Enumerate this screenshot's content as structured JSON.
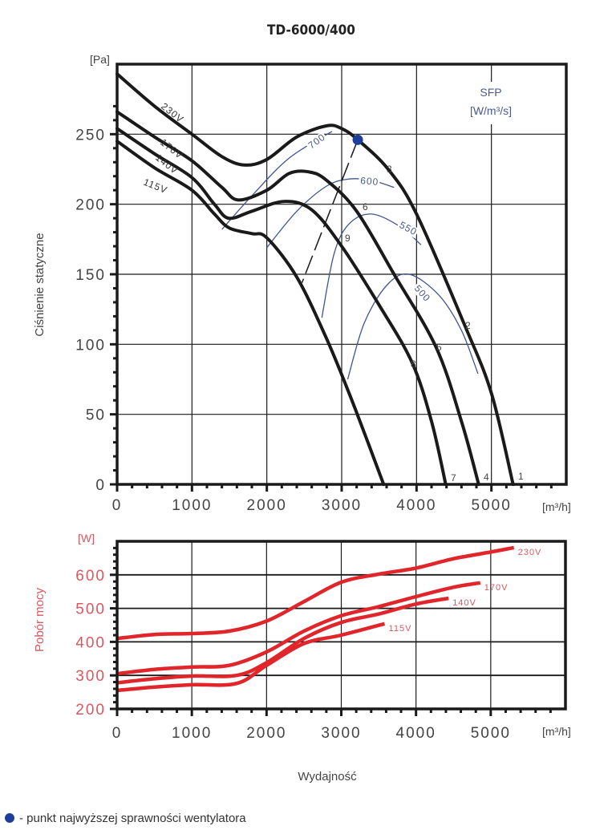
{
  "chart_data": [
    {
      "type": "line",
      "title": "TD-6000/400",
      "xlabel": "Wydajność",
      "xunit": "[m³/h]",
      "ylabel": "Ciśnienie statyczne",
      "yunit": "[Pa]",
      "xlim": [
        0,
        6000
      ],
      "ylim": [
        0,
        300
      ],
      "xticks": [
        0,
        1000,
        2000,
        3000,
        4000,
        5000
      ],
      "yticks": [
        0,
        50,
        100,
        150,
        200,
        250
      ],
      "grid": true,
      "series": [
        {
          "name": "230V",
          "x": [
            0,
            500,
            1000,
            1400,
            1700,
            2000,
            2400,
            2800,
            3000,
            3215,
            3620,
            4000,
            4640,
            5000,
            5290
          ],
          "y": [
            293,
            270,
            250,
            234,
            228,
            232,
            248,
            256,
            254,
            246,
            225,
            193,
            114,
            65,
            0
          ]
        },
        {
          "name": "170V",
          "x": [
            0,
            500,
            1000,
            1400,
            1620,
            2000,
            2300,
            2570,
            2800,
            3200,
            3700,
            4260,
            4600,
            4830
          ],
          "y": [
            266,
            248,
            231,
            212,
            203,
            210,
            222,
            223,
            217,
            195,
            150,
            98,
            45,
            0
          ]
        },
        {
          "name": "140V",
          "x": [
            0,
            500,
            1000,
            1300,
            1490,
            1800,
            2230,
            2600,
            3000,
            3500,
            3940,
            4200,
            4390
          ],
          "y": [
            254,
            236,
            219,
            200,
            190,
            195,
            202,
            196,
            170,
            128,
            87,
            45,
            0
          ]
        },
        {
          "name": "115V",
          "x": [
            0,
            500,
            1000,
            1300,
            1500,
            1800,
            2000,
            2400,
            2790,
            3100,
            3350,
            3560
          ],
          "y": [
            245,
            226,
            210,
            193,
            183,
            179,
            176,
            148,
            105,
            65,
            30,
            0
          ]
        }
      ],
      "series_labels": [
        "230V",
        "170V",
        "140V",
        "115V"
      ],
      "operating_points": [
        "1",
        "2",
        "3",
        "4",
        "5",
        "6",
        "7",
        "8",
        "9"
      ],
      "sfp": {
        "title": "SFP",
        "unit": "[W/m³/s]",
        "lines": [
          {
            "label": "700",
            "x": [
              1400,
              1800,
              2300,
              2870
            ],
            "y": [
              182,
              206,
              233,
              252
            ]
          },
          {
            "label": "600",
            "x": [
              2000,
              2400,
              2800,
              3100,
              3400,
              3700
            ],
            "y": [
              169,
              195,
              213,
              218,
              217,
              212
            ]
          },
          {
            "label": "550",
            "x": [
              2735,
              2900,
              3100,
              3400,
              3780,
              4060
            ],
            "y": [
              119,
              165,
              186,
              193,
              184,
              171
            ]
          },
          {
            "label": "500",
            "x": [
              3080,
              3300,
              3600,
              3900,
              4300,
              4600,
              4820
            ],
            "y": [
              75,
              115,
              142,
              150,
              135,
              110,
              79
            ]
          }
        ]
      },
      "best_efficiency_point": {
        "x": 3215,
        "y": 246,
        "color": "#1d3f9a"
      },
      "efficiency_line": {
        "x": [
          3215,
          2470
        ],
        "y": [
          246,
          144
        ]
      }
    },
    {
      "type": "line",
      "title": "",
      "xlabel": "Wydajność",
      "xunit": "[m³/h]",
      "ylabel": "Pobór mocy",
      "yunit": "[W]",
      "xlim": [
        0,
        6000
      ],
      "ylim": [
        200,
        700
      ],
      "xticks": [
        0,
        1000,
        2000,
        3000,
        4000,
        5000
      ],
      "yticks": [
        200,
        300,
        400,
        500,
        600
      ],
      "grid": true,
      "color": "#e0262a",
      "series": [
        {
          "name": "230V",
          "x": [
            0,
            500,
            1000,
            1500,
            2000,
            2500,
            3000,
            3500,
            4000,
            4500,
            5000,
            5310
          ],
          "y": [
            410,
            422,
            425,
            432,
            462,
            520,
            578,
            602,
            620,
            648,
            668,
            681
          ]
        },
        {
          "name": "170V",
          "x": [
            0,
            500,
            1000,
            1500,
            2000,
            2500,
            3000,
            3500,
            4000,
            4500,
            4860
          ],
          "y": [
            305,
            318,
            325,
            330,
            370,
            432,
            478,
            505,
            535,
            563,
            576
          ]
        },
        {
          "name": "140V",
          "x": [
            0,
            500,
            1000,
            1600,
            2000,
            2500,
            3000,
            3500,
            4000,
            4435
          ],
          "y": [
            278,
            290,
            298,
            300,
            338,
            410,
            458,
            483,
            513,
            530
          ]
        },
        {
          "name": "115V",
          "x": [
            0,
            500,
            1000,
            1600,
            2000,
            2500,
            3000,
            3580
          ],
          "y": [
            255,
            265,
            272,
            276,
            330,
            395,
            420,
            454
          ]
        }
      ]
    }
  ],
  "legend_note": "- punkt najwyższej sprawności wentylatora",
  "colors": {
    "curve": "#1a1a1a",
    "sfp": "#3f5590",
    "power": "#e0262a",
    "power_text": "#d95860",
    "point": "#1d3f9a"
  }
}
